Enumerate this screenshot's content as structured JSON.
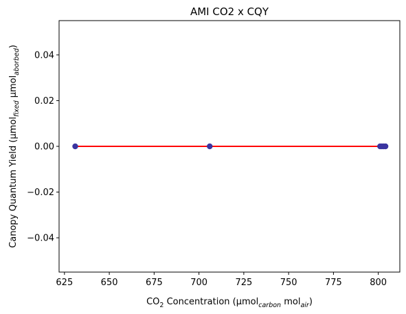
{
  "chart_data": {
    "type": "scatter",
    "title": "AMI CO2 x CQY",
    "xlabel": {
      "base": "CO",
      "sub": "2",
      "mid": " Concentration (µmol",
      "sub2": "carbon",
      "mid2": " mol",
      "sub3": "air",
      "end": ")"
    },
    "ylabel": {
      "base": "Canopy Quantum Yield (µmol",
      "sub": "fixed",
      "mid": " µmol",
      "sub2": "aborbed",
      "end": ")"
    },
    "xlim": [
      622,
      812
    ],
    "ylim": [
      -0.055,
      0.055
    ],
    "xticks": [
      "625",
      "650",
      "675",
      "700",
      "725",
      "750",
      "775",
      "800"
    ],
    "xtick_values": [
      625,
      650,
      675,
      700,
      725,
      750,
      775,
      800
    ],
    "yticks": [
      "−0.04",
      "−0.02",
      "0.00",
      "0.02",
      "0.04"
    ],
    "ytick_values": [
      -0.04,
      -0.02,
      0.0,
      0.02,
      0.04
    ],
    "grid": false,
    "legend": "none",
    "series": [
      {
        "kind": "points",
        "color": "#3a34a0",
        "points": [
          {
            "x": 631,
            "y": 0.0
          },
          {
            "x": 706,
            "y": 0.0
          },
          {
            "x": 801,
            "y": 0.0
          },
          {
            "x": 802,
            "y": 0.0
          },
          {
            "x": 803,
            "y": 0.0
          },
          {
            "x": 804,
            "y": 0.0
          }
        ]
      },
      {
        "kind": "fit-line",
        "color": "#ff0000",
        "points": [
          {
            "x": 631,
            "y": 0.0
          },
          {
            "x": 804,
            "y": 0.0
          }
        ]
      }
    ]
  }
}
